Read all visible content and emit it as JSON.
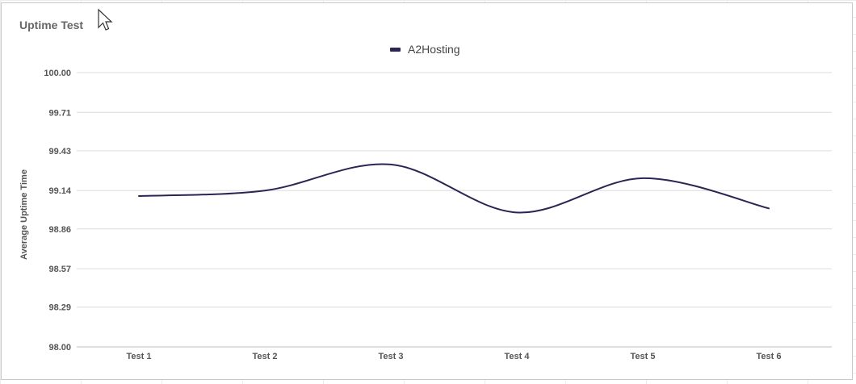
{
  "chart_data": {
    "type": "line",
    "title": "Uptime Test",
    "xlabel": "",
    "ylabel": "Average Uptime Time",
    "categories": [
      "Test 1",
      "Test 2",
      "Test 3",
      "Test 4",
      "Test 5",
      "Test 6"
    ],
    "series": [
      {
        "name": "A2Hosting",
        "values": [
          99.1,
          99.14,
          99.33,
          98.98,
          99.23,
          99.01
        ],
        "color": "#2a2552"
      }
    ],
    "yticks": [
      "98.00",
      "98.29",
      "98.57",
      "98.86",
      "99.14",
      "99.43",
      "99.71",
      "100.00"
    ],
    "ylim": [
      98.0,
      100.0
    ],
    "grid": true,
    "legend_position": "top-center",
    "smooth": true
  },
  "icons": {
    "cursor": "mouse-pointer-icon"
  }
}
